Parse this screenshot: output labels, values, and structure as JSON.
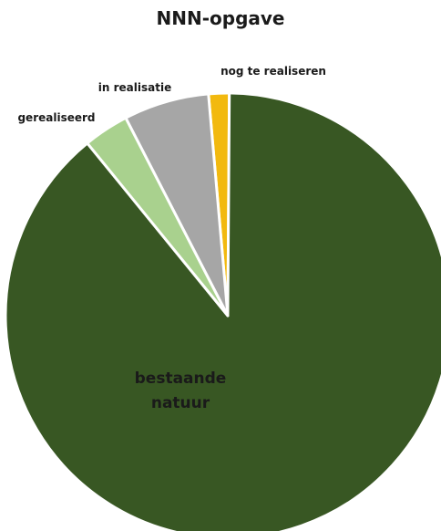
{
  "chart_data": {
    "type": "pie",
    "title": "NNN-opgave",
    "slices": [
      {
        "label": "nog te realiseren",
        "value": 1.5,
        "color": "#f2b90f"
      },
      {
        "label": "bestaande natuur",
        "value": 89.0,
        "color": "#385723"
      },
      {
        "label": "gerealiseerd",
        "value": 3.3,
        "color": "#a9d18e"
      },
      {
        "label": "in realisatie",
        "value": 6.2,
        "color": "#a6a6a6"
      }
    ]
  }
}
